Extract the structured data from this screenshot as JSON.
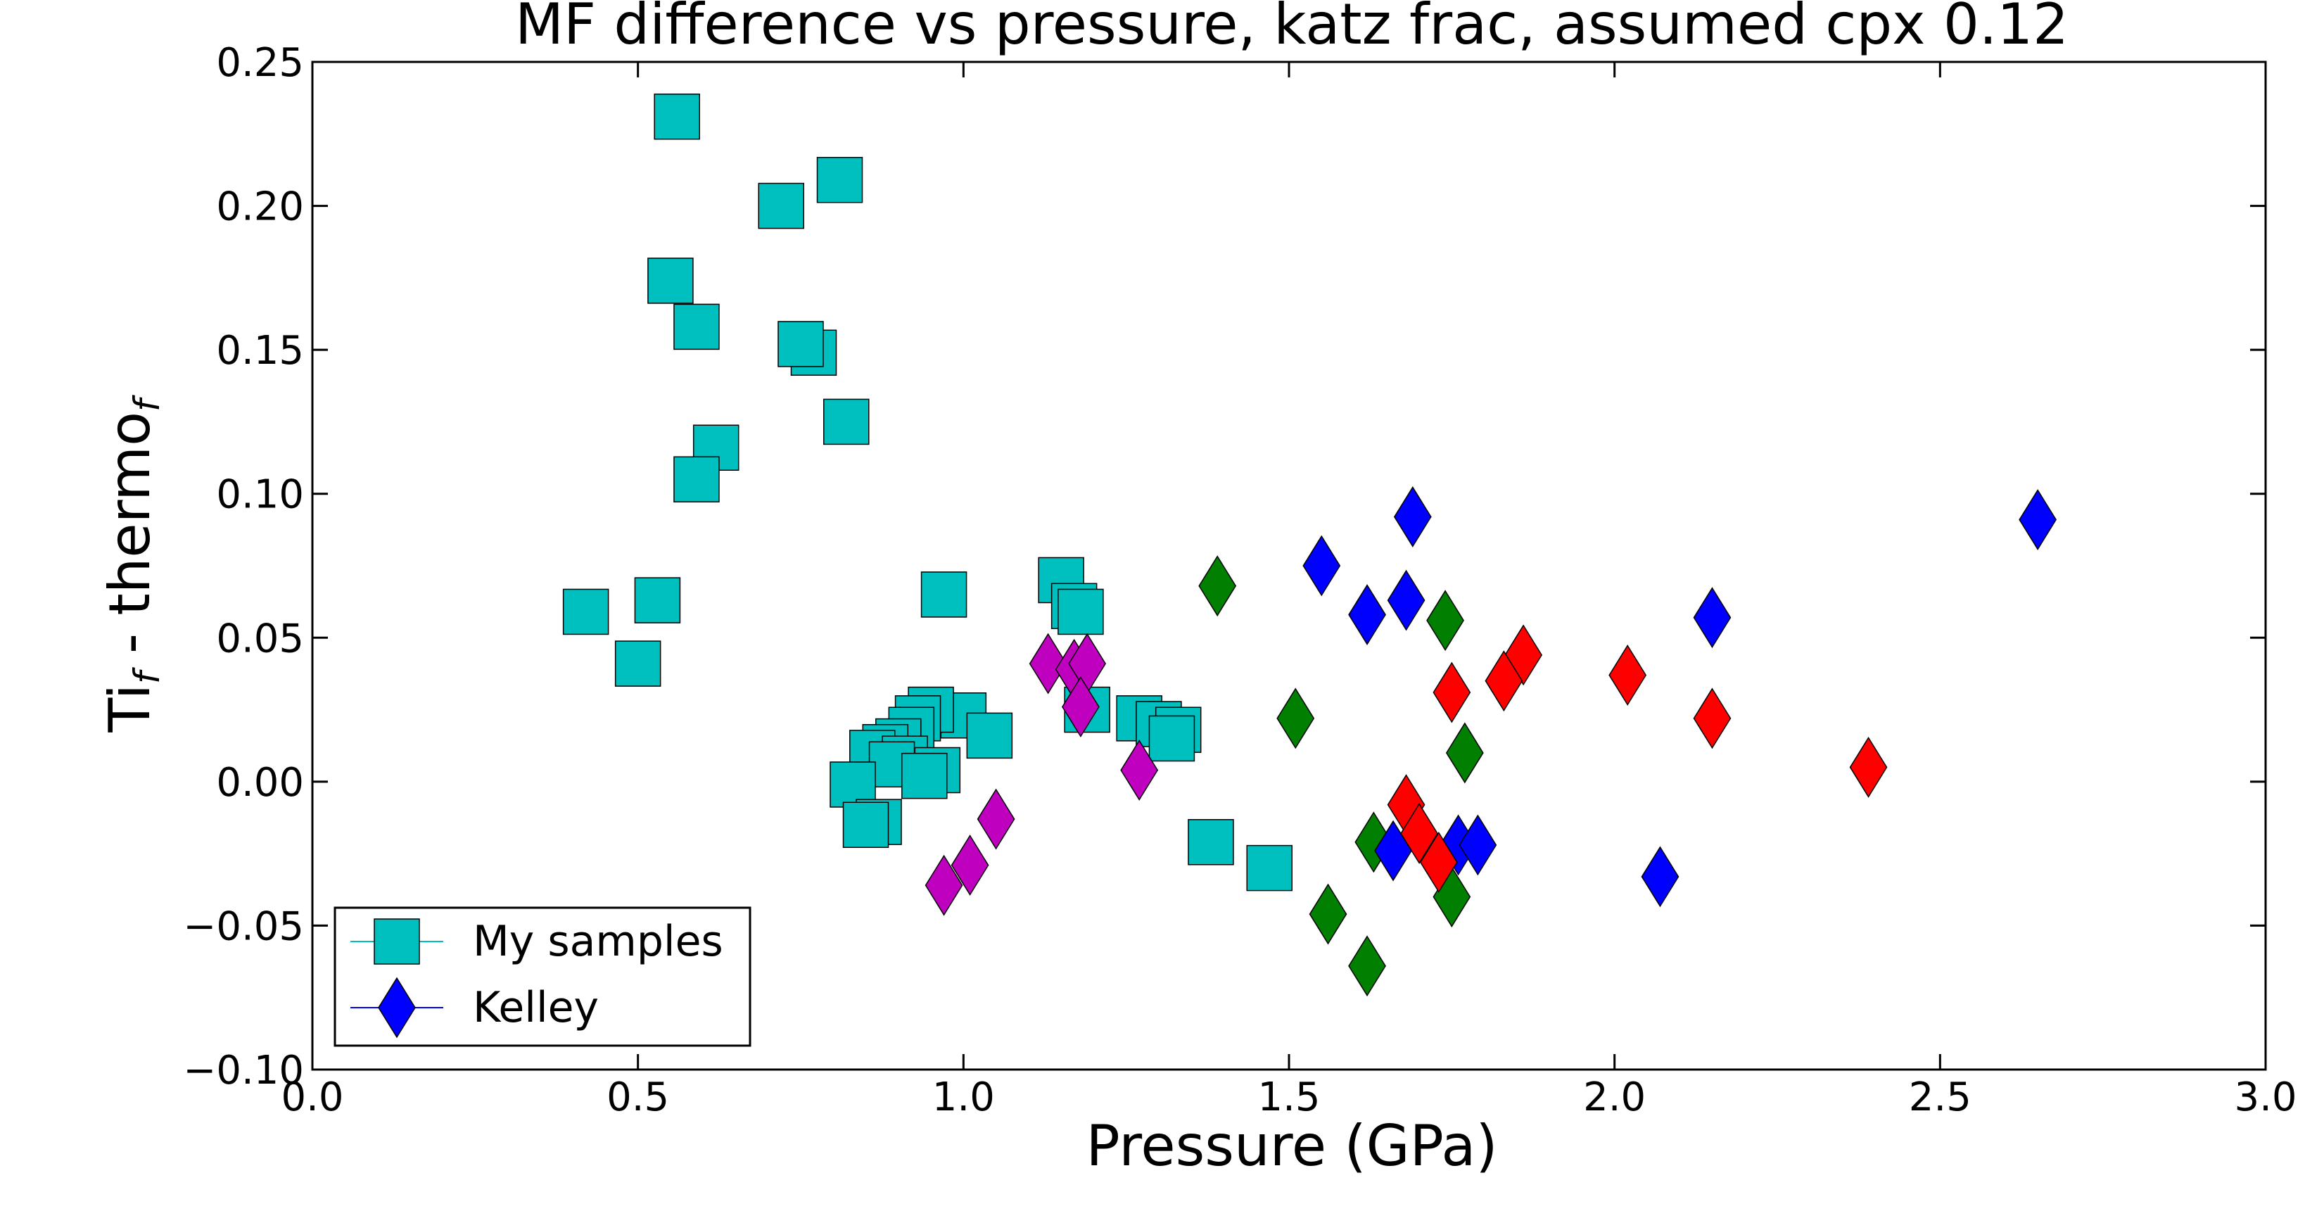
{
  "chart_data": {
    "type": "scatter",
    "title": "MF difference vs pressure, katz frac, assumed cpx 0.12",
    "xlabel": "Pressure (GPa)",
    "ylabel": {
      "base1": "Ti",
      "sub1": "f",
      "mid": " - thermo",
      "sub2": "f"
    },
    "xlim": [
      0.0,
      3.0
    ],
    "ylim": [
      -0.1,
      0.25
    ],
    "x_ticks": [
      0.0,
      0.5,
      1.0,
      1.5,
      2.0,
      2.5,
      3.0
    ],
    "x_tick_labels": [
      "0.0",
      "0.5",
      "1.0",
      "1.5",
      "2.0",
      "2.5",
      "3.0"
    ],
    "y_ticks": [
      -0.1,
      -0.05,
      0.0,
      0.05,
      0.1,
      0.15,
      0.2,
      0.25
    ],
    "y_tick_labels": [
      "−0.10",
      "−0.05",
      "0.00",
      "0.05",
      "0.10",
      "0.15",
      "0.20",
      "0.25"
    ],
    "grid": false,
    "legend": {
      "placement": "lower-left",
      "entries": [
        {
          "label": "My samples",
          "marker": "square",
          "color": "#00bfbf"
        },
        {
          "label": "Kelley",
          "marker": "diamond",
          "color": "#0000ff"
        }
      ]
    },
    "series": [
      {
        "marker": "square",
        "color": "#00bfbf",
        "points": [
          [
            0.56,
            0.231
          ],
          [
            0.81,
            0.209
          ],
          [
            0.72,
            0.2
          ],
          [
            0.55,
            0.174
          ],
          [
            0.59,
            0.158
          ],
          [
            0.77,
            0.149
          ],
          [
            0.75,
            0.152
          ],
          [
            0.82,
            0.125
          ],
          [
            0.62,
            0.116
          ],
          [
            0.59,
            0.105
          ],
          [
            0.42,
            0.059
          ],
          [
            0.53,
            0.063
          ],
          [
            0.5,
            0.041
          ],
          [
            0.97,
            0.065
          ],
          [
            1.15,
            0.07
          ],
          [
            1.17,
            0.061
          ],
          [
            1.18,
            0.059
          ],
          [
            1.0,
            0.023
          ],
          [
            1.04,
            0.016
          ],
          [
            0.95,
            0.025
          ],
          [
            0.93,
            0.022
          ],
          [
            0.92,
            0.018
          ],
          [
            0.9,
            0.014
          ],
          [
            0.88,
            0.012
          ],
          [
            0.86,
            0.01
          ],
          [
            0.91,
            0.008
          ],
          [
            0.89,
            0.006
          ],
          [
            0.96,
            0.004
          ],
          [
            0.94,
            0.002
          ],
          [
            0.83,
            -0.001
          ],
          [
            0.87,
            -0.014
          ],
          [
            0.85,
            -0.015
          ],
          [
            1.19,
            0.025
          ],
          [
            1.27,
            0.022
          ],
          [
            1.3,
            0.02
          ],
          [
            1.33,
            0.018
          ],
          [
            1.32,
            0.015
          ],
          [
            1.38,
            -0.021
          ],
          [
            1.47,
            -0.03
          ]
        ]
      },
      {
        "marker": "diamond",
        "color": "#bf00bf",
        "points": [
          [
            1.13,
            0.041
          ],
          [
            1.17,
            0.039
          ],
          [
            1.19,
            0.041
          ],
          [
            1.18,
            0.026
          ],
          [
            1.27,
            0.004
          ],
          [
            1.05,
            -0.013
          ],
          [
            1.01,
            -0.029
          ],
          [
            0.97,
            -0.036
          ]
        ]
      },
      {
        "marker": "diamond",
        "color": "#007f00",
        "points": [
          [
            1.39,
            0.068
          ],
          [
            1.74,
            0.056
          ],
          [
            1.51,
            0.022
          ],
          [
            1.77,
            0.01
          ],
          [
            1.63,
            -0.021
          ],
          [
            1.75,
            -0.04
          ],
          [
            1.56,
            -0.046
          ],
          [
            1.62,
            -0.064
          ]
        ]
      },
      {
        "marker": "diamond",
        "color": "#0000ff",
        "points": [
          [
            1.69,
            0.092
          ],
          [
            2.65,
            0.091
          ],
          [
            1.55,
            0.075
          ],
          [
            1.68,
            0.063
          ],
          [
            1.62,
            0.058
          ],
          [
            2.15,
            0.057
          ],
          [
            1.66,
            -0.024
          ],
          [
            1.76,
            -0.022
          ],
          [
            1.79,
            -0.022
          ],
          [
            2.07,
            -0.033
          ]
        ]
      },
      {
        "marker": "diamond",
        "color": "#ff0000",
        "points": [
          [
            1.86,
            0.044
          ],
          [
            2.02,
            0.037
          ],
          [
            1.83,
            0.035
          ],
          [
            1.75,
            0.031
          ],
          [
            2.15,
            0.022
          ],
          [
            2.39,
            0.005
          ],
          [
            1.68,
            -0.008
          ],
          [
            1.7,
            -0.018
          ],
          [
            1.73,
            -0.028
          ]
        ]
      }
    ]
  }
}
